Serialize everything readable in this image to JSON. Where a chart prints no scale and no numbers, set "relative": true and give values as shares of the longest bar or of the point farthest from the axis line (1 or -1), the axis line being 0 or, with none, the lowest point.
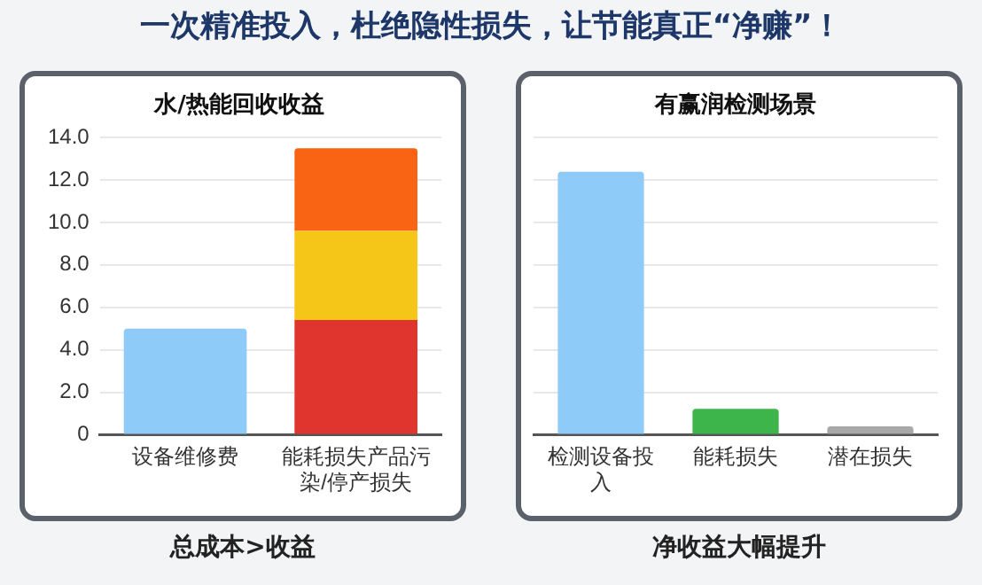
{
  "chart_data": [
    {
      "type": "bar",
      "title": "一次精准投入，杜绝隐性损失，让节能真正“净赚”！",
      "subtitle": "水/热能回收收益",
      "categories": [
        "设备维修费",
        "能耗损失产品污染/停产损失"
      ],
      "stacked": true,
      "series": [
        {
          "colors": [
            "#8ecbf8",
            "#e0352f"
          ],
          "values": [
            5.0,
            5.4
          ]
        },
        {
          "color": "#f5c518",
          "values": [
            null,
            4.2
          ]
        },
        {
          "color": "#f86414",
          "values": [
            null,
            3.9
          ]
        }
      ],
      "ylim": [
        0,
        14
      ],
      "yticks": [
        0,
        {
          "value": 2,
          "label": "2.0"
        },
        {
          "value": 4,
          "label": "4.0"
        },
        {
          "value": 6,
          "label": "6.0"
        },
        {
          "value": 8,
          "label": "8.0"
        },
        {
          "value": 10,
          "label": "10.0"
        },
        {
          "value": 12,
          "label": "12.0"
        },
        {
          "value": 14,
          "label": "14.0"
        }
      ],
      "grid": "y",
      "annotations": [
        "总成本>收益"
      ]
    },
    {
      "type": "bar",
      "subtitle": "有赢润检测场景",
      "categories": [
        "检测设备投入",
        "能耗损失",
        "潜在损失"
      ],
      "relative": true,
      "colors": [
        "#8ecbf8",
        "#3db54a",
        "#a8a8a8"
      ],
      "values": [
        1,
        0.098,
        0.032
      ],
      "grid": "y",
      "annotations": [
        "净收益大幅提升"
      ]
    }
  ]
}
